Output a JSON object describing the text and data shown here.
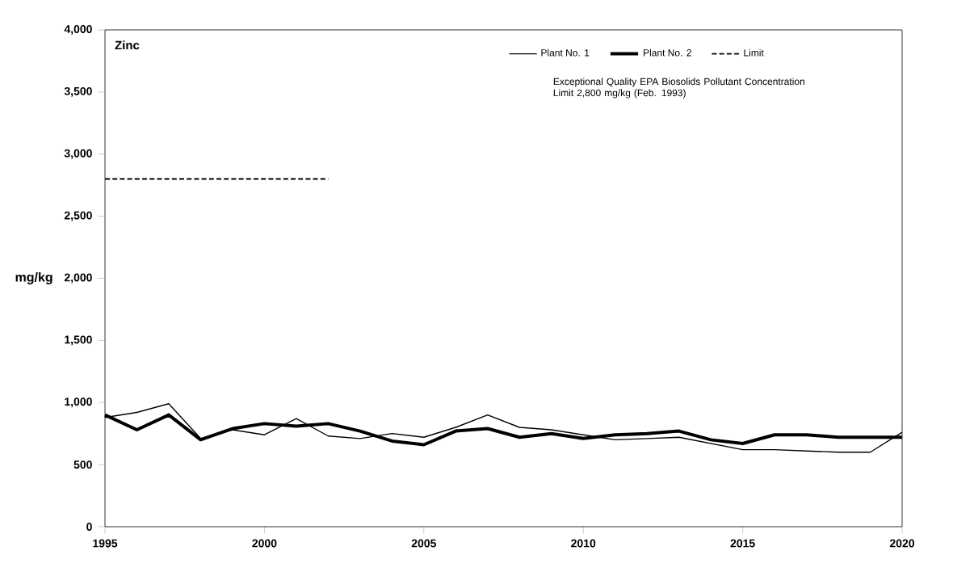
{
  "chart_data": {
    "type": "line",
    "title": "Zinc",
    "ylabel": "mg/kg",
    "x": [
      1995,
      1996,
      1997,
      1998,
      1999,
      2000,
      2001,
      2002,
      2003,
      2004,
      2005,
      2006,
      2007,
      2008,
      2009,
      2010,
      2011,
      2012,
      2013,
      2014,
      2015,
      2016,
      2017,
      2018,
      2019,
      2020
    ],
    "series": [
      {
        "name": "Plant No. 1",
        "color": "#000000",
        "values": [
          880,
          920,
          990,
          710,
          780,
          740,
          870,
          730,
          710,
          750,
          720,
          800,
          900,
          800,
          780,
          740,
          700,
          710,
          720,
          670,
          620,
          620,
          610,
          600,
          600,
          760
        ]
      },
      {
        "name": "Plant No. 2",
        "color": "#000000",
        "values": [
          900,
          780,
          900,
          700,
          790,
          830,
          810,
          830,
          770,
          690,
          660,
          770,
          790,
          720,
          750,
          710,
          740,
          750,
          770,
          700,
          670,
          740,
          740,
          720,
          720,
          720
        ]
      },
      {
        "name": "Limit",
        "color": "#000000",
        "line_style": "dashed",
        "x": [
          1995,
          2002
        ],
        "values": [
          2800,
          2800
        ]
      }
    ],
    "xlim": [
      1995,
      2020
    ],
    "xticks": [
      1995,
      2000,
      2005,
      2010,
      2015,
      2020
    ],
    "ylim": [
      0,
      4000
    ],
    "yticks": [
      0,
      500,
      {
        "value": 1000,
        "label": "1,000"
      },
      {
        "value": 1500,
        "label": "1,500"
      },
      {
        "value": 2000,
        "label": "2,000"
      },
      {
        "value": 2500,
        "label": "2,500"
      },
      {
        "value": 3000,
        "label": "3,000"
      },
      {
        "value": 3500,
        "label": "3,500"
      },
      {
        "value": 4000,
        "label": "4,000"
      }
    ],
    "legend": "top right",
    "annotations": [
      "Exceptional Quality EPA Biosolids Pollutant Concentration  Limit 2,800 mg/kg (Feb. 1993)"
    ]
  }
}
